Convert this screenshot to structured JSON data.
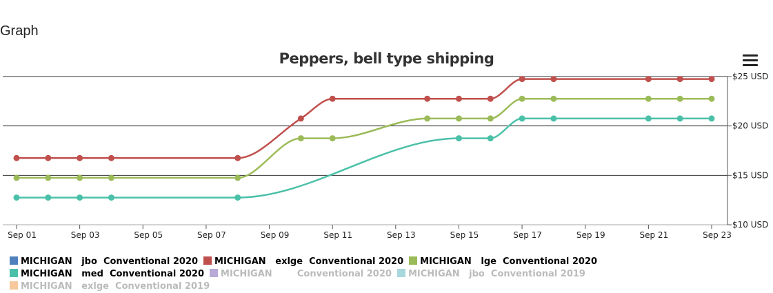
{
  "page": {
    "heading": "Graph"
  },
  "chart_data": {
    "type": "line",
    "title": "Peppers, bell type shipping",
    "x_ticks": [
      "Sep 01",
      "Sep 03",
      "Sep 05",
      "Sep 07",
      "Sep 09",
      "Sep 11",
      "Sep 13",
      "Sep 15",
      "Sep 17",
      "Sep 19",
      "Sep 21",
      "Sep 23"
    ],
    "y_ticks": [
      "$10 USD",
      "$15 USD",
      "$20 USD",
      "$25 USD"
    ],
    "xlim": [
      "Sep 01",
      "Sep 23"
    ],
    "ylim": [
      10,
      25
    ],
    "grid": "horizontal",
    "legend_position": "bottom-left",
    "series": [
      {
        "name": "MICHIGAN   jbo  Conventional 2020",
        "color": "#4f81bd",
        "visible": true,
        "x": [],
        "values": []
      },
      {
        "name": "MICHIGAN   exlge  Conventional 2020",
        "color": "#c0504d",
        "visible": true,
        "x": [
          "Sep 01",
          "Sep 02",
          "Sep 03",
          "Sep 04",
          "Sep 08",
          "Sep 10",
          "Sep 11",
          "Sep 14",
          "Sep 15",
          "Sep 16",
          "Sep 17",
          "Sep 18",
          "Sep 21",
          "Sep 22",
          "Sep 23"
        ],
        "values": [
          16.75,
          16.75,
          16.75,
          16.75,
          16.75,
          20.75,
          22.75,
          22.75,
          22.75,
          22.75,
          24.75,
          24.75,
          24.75,
          24.75,
          24.75
        ]
      },
      {
        "name": "MICHIGAN   lge  Conventional 2020",
        "color": "#9bbb59",
        "visible": true,
        "x": [
          "Sep 01",
          "Sep 02",
          "Sep 03",
          "Sep 04",
          "Sep 08",
          "Sep 10",
          "Sep 11",
          "Sep 14",
          "Sep 15",
          "Sep 16",
          "Sep 17",
          "Sep 18",
          "Sep 21",
          "Sep 22",
          "Sep 23"
        ],
        "values": [
          14.75,
          14.75,
          14.75,
          14.75,
          14.75,
          18.75,
          18.75,
          20.75,
          20.75,
          20.75,
          22.75,
          22.75,
          22.75,
          22.75,
          22.75
        ]
      },
      {
        "name": "MICHIGAN   med  Conventional 2020",
        "color": "#4bc0a9",
        "visible": true,
        "x": [
          "Sep 01",
          "Sep 02",
          "Sep 03",
          "Sep 04",
          "Sep 08",
          "Sep 15",
          "Sep 16",
          "Sep 17",
          "Sep 18",
          "Sep 21",
          "Sep 22",
          "Sep 23"
        ],
        "values": [
          12.75,
          12.75,
          12.75,
          12.75,
          12.75,
          18.75,
          18.75,
          20.75,
          20.75,
          20.75,
          20.75,
          20.75
        ]
      },
      {
        "name": "MICHIGAN        Conventional 2020",
        "color": "#b8a9d6",
        "visible": false,
        "x": [],
        "values": []
      },
      {
        "name": "MICHIGAN   jbo  Conventional 2019",
        "color": "#a8d8dc",
        "visible": false,
        "x": [],
        "values": []
      },
      {
        "name": "MICHIGAN   exlge  Conventional 2019",
        "color": "#f7c89b",
        "visible": false,
        "x": [],
        "values": []
      }
    ]
  },
  "icons": {
    "menu": "hamburger-menu-icon"
  }
}
